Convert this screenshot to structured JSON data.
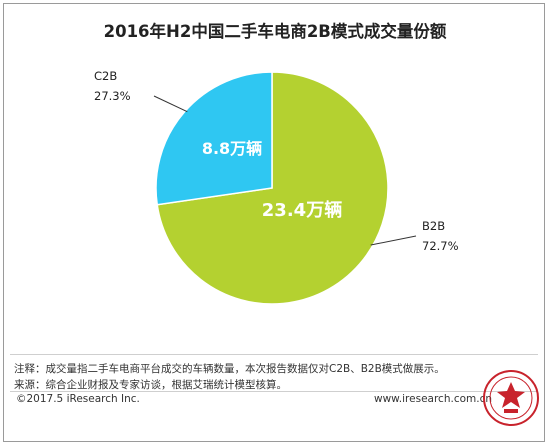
{
  "colors": {
    "b2b": "#b4d130",
    "c2b": "#2fc7f2",
    "slice_label": "#ffffff"
  },
  "chart_data": {
    "type": "pie",
    "title": "2016年H2中国二手车电商2B模式成交量份额",
    "slices": [
      {
        "name": "B2B",
        "percent": 72.7,
        "percent_label": "72.7%",
        "value": 23.4,
        "value_label": "23.4万辆"
      },
      {
        "name": "C2B",
        "percent": 27.3,
        "percent_label": "27.3%",
        "value": 8.8,
        "value_label": "8.8万辆"
      }
    ]
  },
  "notes": {
    "note_line": "注释：成交量指二手车电商平台成交的车辆数量，本次报告数据仅对C2B、B2B模式做展示。",
    "source_line": "来源：综合企业财报及专家访谈，根据艾瑞统计模型核算。"
  },
  "footer": {
    "copyright": "©2017.5 iResearch Inc.",
    "website": "www.iresearch.com.cn"
  },
  "stamp": {
    "icon": "university-seal-icon"
  }
}
